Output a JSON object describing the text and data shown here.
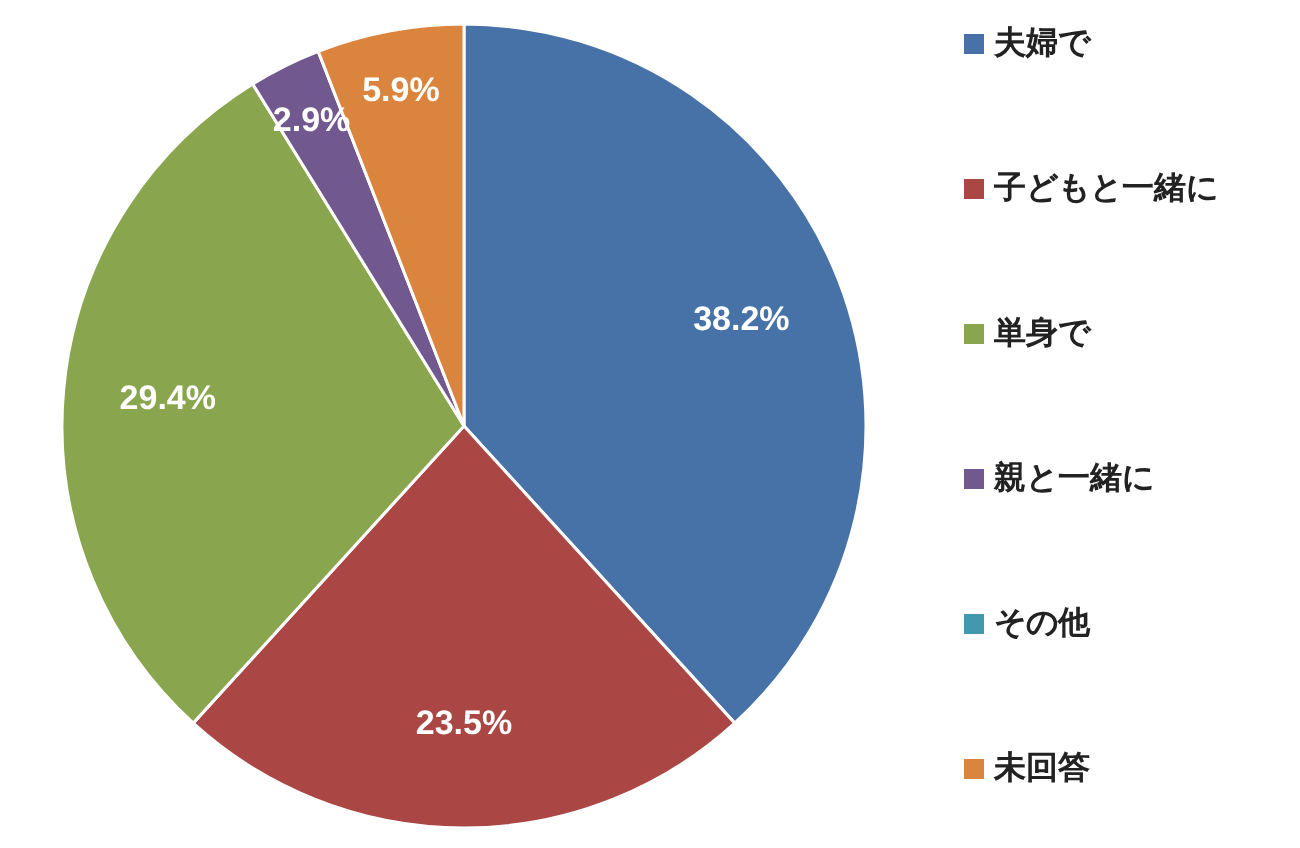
{
  "chart_data": {
    "type": "pie",
    "categories": [
      "夫婦で",
      "子どもと一緒に",
      "単身で",
      "親と一緒に",
      "その他",
      "未回答"
    ],
    "values": [
      38.2,
      23.5,
      29.4,
      2.9,
      0,
      5.9
    ],
    "colors": [
      "#4672a8",
      "#aa4643",
      "#89a54e",
      "#71588f",
      "#4198af",
      "#db843d"
    ],
    "value_labels": [
      "38.2%",
      "23.5%",
      "29.4%",
      "2.9%",
      null,
      "5.9%"
    ],
    "legend": "right"
  }
}
